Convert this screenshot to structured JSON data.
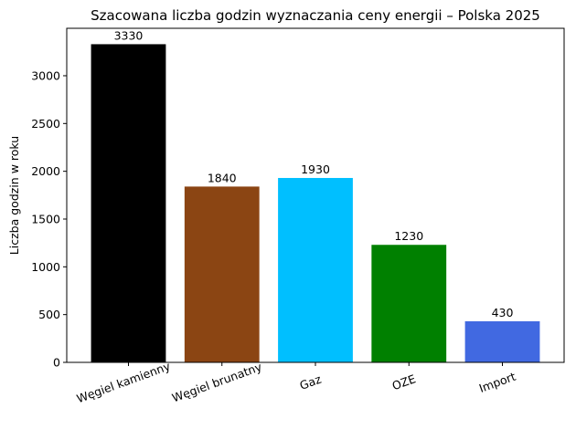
{
  "chart_data": {
    "type": "bar",
    "title": "Szacowana liczba godzin wyznaczania ceny energii – Polska 2025",
    "y_label": "Liczba godzin w roku",
    "categories": [
      "Węgiel kamienny",
      "Węgiel brunatny",
      "Gaz",
      "OZE",
      "Import"
    ],
    "values": [
      3330,
      1840,
      1930,
      1230,
      430
    ],
    "colors": [
      "#000000",
      "#8b4513",
      "#00bfff",
      "#008000",
      "#4169e1"
    ],
    "ylim": [
      0,
      3496.5
    ],
    "yticks": [
      0,
      500,
      1000,
      1500,
      2000,
      2500,
      3000
    ],
    "grid": false
  }
}
